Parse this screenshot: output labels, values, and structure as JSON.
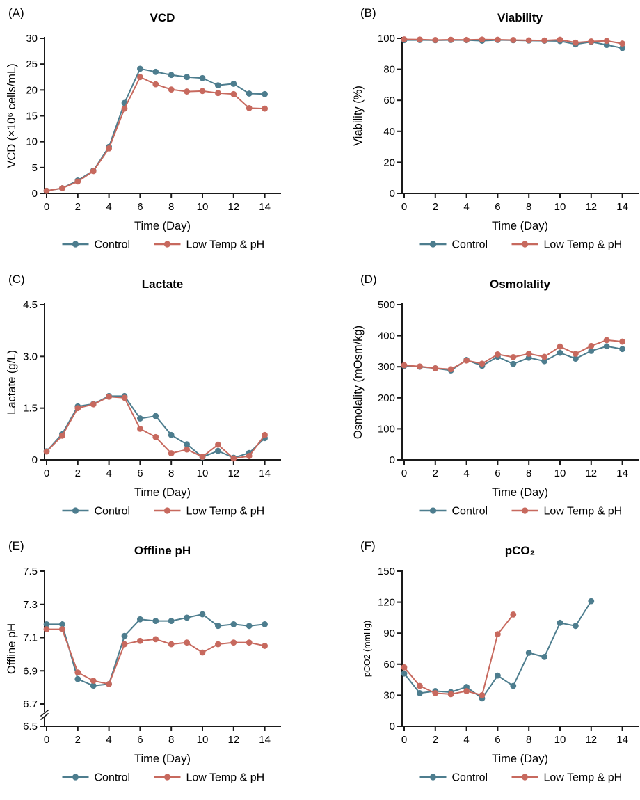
{
  "figure": {
    "background": "#ffffff",
    "text_color": "#000000",
    "axis_color": "#1a1a1a"
  },
  "legend": {
    "entries": [
      {
        "label": "Control",
        "color": "#4d7d8e"
      },
      {
        "label": "Low Temp & pH",
        "color": "#c7695e"
      }
    ],
    "position": "bottom"
  },
  "chart_data": [
    {
      "panel": "(A)",
      "type": "line",
      "title": "VCD",
      "xlabel": "Time (Day)",
      "ylabel": "VCD (×10⁶ cells/mL)",
      "xlim": [
        0,
        15
      ],
      "ylim": [
        0,
        30
      ],
      "grid": false,
      "xticks": [
        0,
        2,
        4,
        6,
        8,
        10,
        12,
        14
      ],
      "yticks": [
        0,
        5,
        10,
        15,
        20,
        25,
        30
      ],
      "ytick_labels": [
        "0",
        "5",
        "10",
        "15",
        "20",
        "25",
        "30"
      ],
      "series": [
        {
          "name": "Control",
          "color": "#4d7d8e",
          "x": [
            0,
            1,
            2,
            3,
            4,
            5,
            6,
            7,
            8,
            9,
            10,
            11,
            12,
            13,
            14
          ],
          "values": [
            0.5,
            1.0,
            2.5,
            4.4,
            9.0,
            17.5,
            24.1,
            23.5,
            22.9,
            22.5,
            22.3,
            20.9,
            21.2,
            19.3,
            19.2
          ]
        },
        {
          "name": "Low Temp & pH",
          "color": "#c7695e",
          "x": [
            0,
            1,
            2,
            3,
            4,
            5,
            6,
            7,
            8,
            9,
            10,
            11,
            12,
            13,
            14
          ],
          "values": [
            0.5,
            1.0,
            2.3,
            4.3,
            8.7,
            16.4,
            22.5,
            21.1,
            20.1,
            19.7,
            19.8,
            19.4,
            19.2,
            16.5,
            16.4
          ]
        }
      ]
    },
    {
      "panel": "(B)",
      "type": "line",
      "title": "Viability",
      "xlabel": "Time (Day)",
      "ylabel": "Viability (%)",
      "xlim": [
        0,
        15
      ],
      "ylim": [
        0,
        100
      ],
      "grid": false,
      "xticks": [
        0,
        2,
        4,
        6,
        8,
        10,
        12,
        14
      ],
      "yticks": [
        0,
        20,
        40,
        60,
        80,
        100
      ],
      "ytick_labels": [
        "0",
        "20",
        "40",
        "60",
        "80",
        "100"
      ],
      "series": [
        {
          "name": "Control",
          "color": "#4d7d8e",
          "x": [
            0,
            1,
            2,
            3,
            4,
            5,
            6,
            7,
            8,
            9,
            10,
            11,
            12,
            13,
            14
          ],
          "values": [
            98.8,
            98.9,
            98.7,
            98.9,
            98.8,
            98.4,
            98.9,
            98.7,
            98.5,
            98.4,
            98.2,
            96.1,
            97.7,
            95.7,
            93.7
          ]
        },
        {
          "name": "Low Temp & pH",
          "color": "#c7695e",
          "x": [
            0,
            1,
            2,
            3,
            4,
            5,
            6,
            7,
            8,
            9,
            10,
            11,
            12,
            13,
            14
          ],
          "values": [
            99.3,
            99.2,
            98.9,
            99.1,
            99.0,
            99.2,
            99.1,
            98.9,
            98.7,
            98.6,
            99.1,
            97.2,
            98.0,
            98.3,
            96.6
          ]
        }
      ]
    },
    {
      "panel": "(C)",
      "type": "line",
      "title": "Lactate",
      "xlabel": "Time (Day)",
      "ylabel": "Lactate (g/L)",
      "xlim": [
        0,
        15
      ],
      "ylim": [
        0,
        4.5
      ],
      "grid": false,
      "xticks": [
        0,
        2,
        4,
        6,
        8,
        10,
        12,
        14
      ],
      "yticks": [
        0,
        1.5,
        3.0,
        4.5
      ],
      "ytick_labels": [
        "0",
        "1.5",
        "3.0",
        "4.5"
      ],
      "series": [
        {
          "name": "Control",
          "color": "#4d7d8e",
          "x": [
            0,
            1,
            2,
            3,
            4,
            5,
            6,
            7,
            8,
            9,
            10,
            11,
            12,
            13,
            14
          ],
          "values": [
            0.25,
            0.75,
            1.55,
            1.62,
            1.85,
            1.85,
            1.2,
            1.27,
            0.72,
            0.45,
            0.08,
            0.26,
            0.06,
            0.2,
            0.63
          ]
        },
        {
          "name": "Low Temp & pH",
          "color": "#c7695e",
          "x": [
            0,
            1,
            2,
            3,
            4,
            5,
            6,
            7,
            8,
            9,
            10,
            11,
            12,
            13,
            14
          ],
          "values": [
            0.24,
            0.7,
            1.5,
            1.61,
            1.83,
            1.8,
            0.9,
            0.66,
            0.19,
            0.3,
            0.09,
            0.44,
            0.04,
            0.11,
            0.72
          ]
        }
      ]
    },
    {
      "panel": "(D)",
      "type": "line",
      "title": "Osmolality",
      "xlabel": "Time (Day)",
      "ylabel": "Osmolality (mOsm/kg)",
      "xlim": [
        0,
        15
      ],
      "ylim": [
        0,
        500
      ],
      "grid": false,
      "xticks": [
        0,
        2,
        4,
        6,
        8,
        10,
        12,
        14
      ],
      "yticks": [
        0,
        100,
        200,
        300,
        400,
        500
      ],
      "ytick_labels": [
        "0",
        "100",
        "200",
        "300",
        "400",
        "500"
      ],
      "series": [
        {
          "name": "Control",
          "color": "#4d7d8e",
          "x": [
            0,
            1,
            2,
            3,
            4,
            5,
            6,
            7,
            8,
            9,
            10,
            11,
            12,
            13,
            14
          ],
          "values": [
            303,
            300,
            295,
            288,
            322,
            303,
            332,
            309,
            329,
            318,
            345,
            326,
            351,
            366,
            357
          ]
        },
        {
          "name": "Low Temp & pH",
          "color": "#c7695e",
          "x": [
            0,
            1,
            2,
            3,
            4,
            5,
            6,
            7,
            8,
            9,
            10,
            11,
            12,
            13,
            14
          ],
          "values": [
            305,
            301,
            295,
            292,
            320,
            310,
            340,
            331,
            342,
            332,
            365,
            342,
            367,
            386,
            381
          ]
        }
      ]
    },
    {
      "panel": "(E)",
      "type": "line",
      "title": "Offline pH",
      "xlabel": "Time (Day)",
      "ylabel": "Offline pH",
      "xlim": [
        0,
        15
      ],
      "ylim": [
        6.7,
        7.5
      ],
      "grid": false,
      "axis_break": true,
      "break_tick_label": "6.5",
      "xticks": [
        0,
        2,
        4,
        6,
        8,
        10,
        12,
        14
      ],
      "yticks": [
        6.7,
        6.9,
        7.1,
        7.3,
        7.5
      ],
      "ytick_labels": [
        "6.7",
        "6.9",
        "7.1",
        "7.3",
        "7.5"
      ],
      "series": [
        {
          "name": "Control",
          "color": "#4d7d8e",
          "x": [
            0,
            1,
            2,
            3,
            4,
            5,
            6,
            7,
            8,
            9,
            10,
            11,
            12,
            13,
            14
          ],
          "values": [
            7.18,
            7.18,
            6.85,
            6.81,
            6.82,
            7.11,
            7.21,
            7.2,
            7.2,
            7.22,
            7.24,
            7.17,
            7.18,
            7.17,
            7.18
          ]
        },
        {
          "name": "Low Temp & pH",
          "color": "#c7695e",
          "x": [
            0,
            1,
            2,
            3,
            4,
            5,
            6,
            7,
            8,
            9,
            10,
            11,
            12,
            13,
            14
          ],
          "values": [
            7.15,
            7.15,
            6.89,
            6.84,
            6.82,
            7.06,
            7.08,
            7.09,
            7.06,
            7.07,
            7.01,
            7.06,
            7.07,
            7.07,
            7.05
          ]
        }
      ]
    },
    {
      "panel": "(F)",
      "type": "line",
      "title": "pCO₂",
      "xlabel": "Time (Day)",
      "ylabel": "pCO2 (mmHg)",
      "ylabel_size": 12.5,
      "xlim": [
        0,
        15
      ],
      "ylim": [
        0,
        150
      ],
      "grid": false,
      "xticks": [
        0,
        2,
        4,
        6,
        8,
        10,
        12,
        14
      ],
      "yticks": [
        0,
        30,
        60,
        90,
        120,
        150
      ],
      "ytick_labels": [
        "0",
        "30",
        "60",
        "90",
        "120",
        "150"
      ],
      "series": [
        {
          "name": "Control",
          "color": "#4d7d8e",
          "x": [
            0,
            1,
            2,
            3,
            4,
            5,
            6,
            7,
            8,
            9,
            10,
            11,
            12
          ],
          "values": [
            51,
            32,
            34,
            33,
            38,
            27,
            49,
            39,
            71,
            67,
            100,
            97,
            121
          ]
        },
        {
          "name": "Low Temp & pH",
          "color": "#c7695e",
          "x": [
            0,
            1,
            2,
            3,
            4,
            5,
            6,
            7
          ],
          "values": [
            57,
            39,
            32,
            31,
            34,
            30,
            89,
            108
          ]
        }
      ]
    }
  ]
}
